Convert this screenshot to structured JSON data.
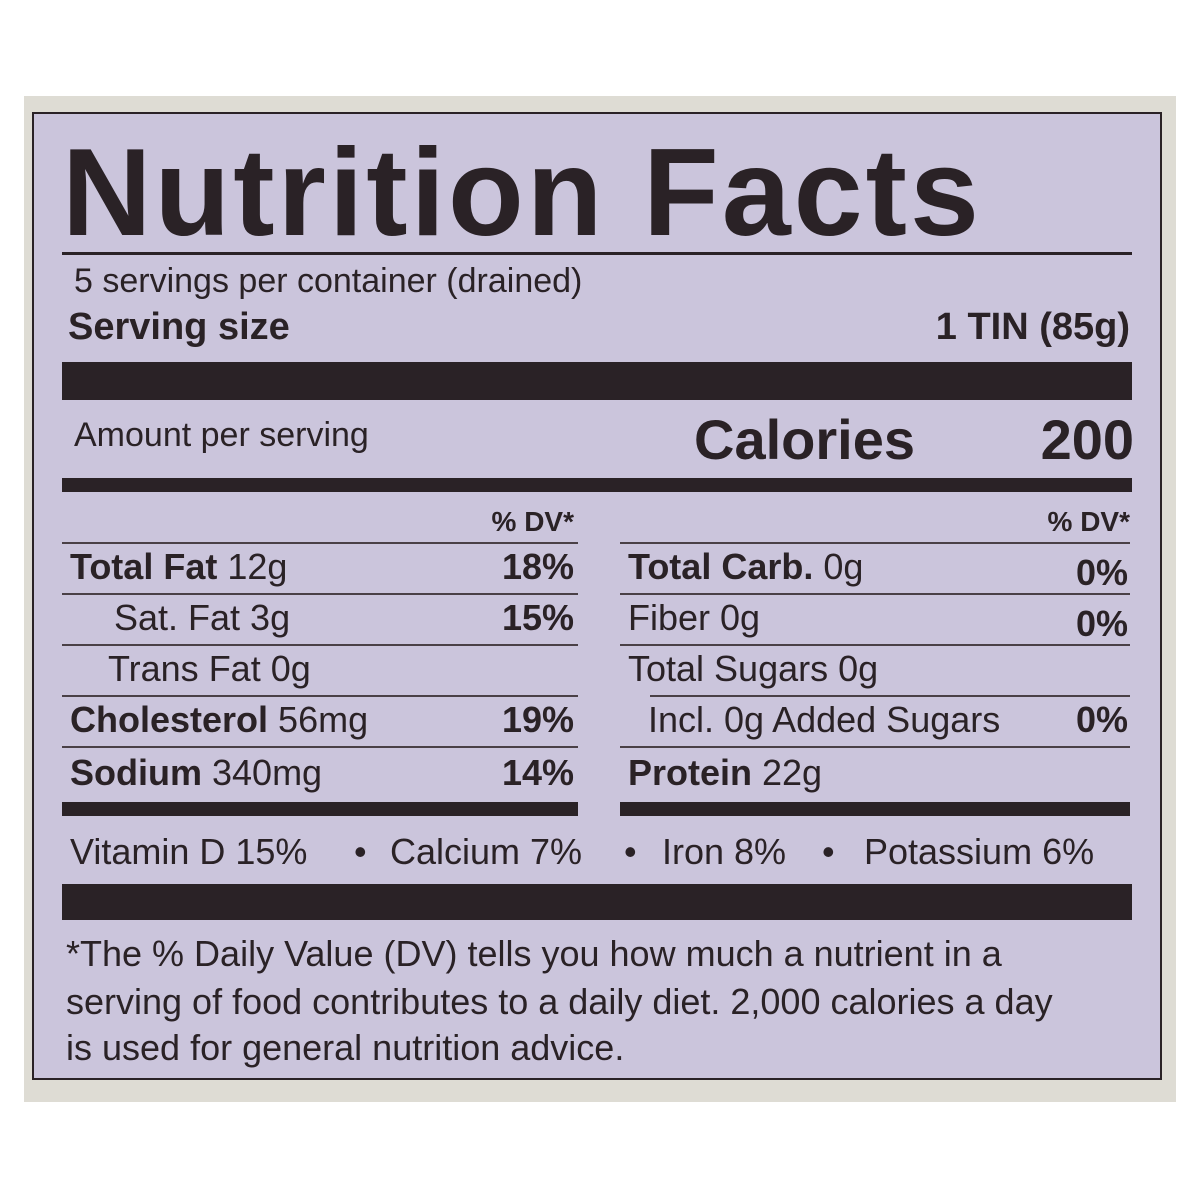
{
  "label": {
    "title": "Nutrition Facts",
    "servings_per_container": "5 servings per container (drained)",
    "serving_size_label": "Serving size",
    "serving_size_value": "1 TIN (85g)",
    "amount_per_serving": "Amount per serving",
    "calories_label": "Calories",
    "calories_value": "200",
    "dv_header": "% DV*"
  },
  "left_column": [
    {
      "name": "Total Fat",
      "amount": " 12g",
      "dv": "18%"
    },
    {
      "name": "Sat. Fat 3g",
      "amount": "",
      "dv": "15%"
    },
    {
      "name": "Trans Fat 0g",
      "amount": "",
      "dv": ""
    },
    {
      "name": "Cholesterol",
      "amount": " 56mg",
      "dv": "19%"
    },
    {
      "name": "Sodium",
      "amount": " 340mg",
      "dv": "14%"
    }
  ],
  "right_column": [
    {
      "name": "Total Carb.",
      "amount": " 0g",
      "dv": "0%"
    },
    {
      "name": "Fiber 0g",
      "amount": "",
      "dv": "0%"
    },
    {
      "name": "Total Sugars 0g",
      "amount": "",
      "dv": ""
    },
    {
      "name": "Incl. 0g Added Sugars",
      "amount": "",
      "dv": "0%"
    },
    {
      "name": "Protein",
      "amount": " 22g",
      "dv": ""
    }
  ],
  "micronutrients": {
    "vitamin_d": "Vitamin D 15%",
    "calcium": "Calcium 7%",
    "iron": "Iron 8%",
    "potassium": "Potassium 6%",
    "separator": "•"
  },
  "footnote": {
    "line1": "*The % Daily Value (DV) tells you how much a nutrient in a",
    "line2": "serving of food contributes to a daily diet. 2,000 calories a day",
    "line3": "is used for general nutrition advice."
  }
}
